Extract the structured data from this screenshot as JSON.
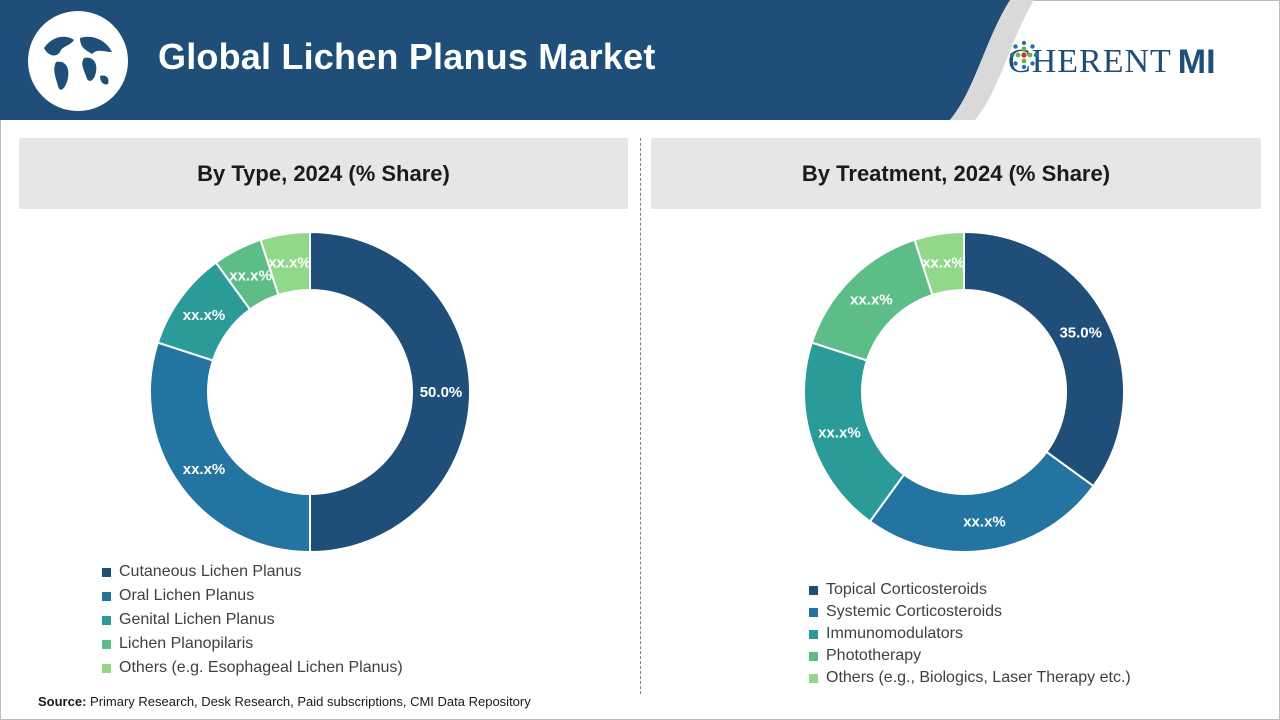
{
  "header": {
    "title": "Global Lichen Planus Market",
    "logo_left": "C",
    "logo_mid": "HERENT",
    "logo_right": "MI"
  },
  "colors": {
    "header_blue": "#1f4e79",
    "series": [
      "#1f4e79",
      "#2474a1",
      "#2b9b9a",
      "#5dbd88",
      "#92d88a"
    ]
  },
  "chart_data": [
    {
      "type": "pie",
      "style": "donut",
      "title": "By Type, 2024 (% Share)",
      "categories": [
        "Cutaneous Lichen Planus",
        "Oral Lichen Planus",
        "Genital Lichen Planus",
        "Lichen Planopilaris",
        "Others (e.g. Esophageal Lichen Planus)"
      ],
      "values": [
        50.0,
        30.0,
        10.0,
        5.0,
        5.0
      ],
      "data_labels": [
        "50.0%",
        "xx.x%",
        "xx.x%",
        "xx.x%",
        "xx.x%"
      ],
      "legend_position": "bottom-left"
    },
    {
      "type": "pie",
      "style": "donut",
      "title": "By Treatment, 2024 (% Share)",
      "categories": [
        "Topical Corticosteroids",
        "Systemic Corticosteroids",
        "Immunomodulators",
        "Phototherapy",
        "Others (e.g., Biologics, Laser Therapy etc.)"
      ],
      "values": [
        35.0,
        25.0,
        20.0,
        15.0,
        5.0
      ],
      "data_labels": [
        "35.0%",
        "xx.x%",
        "xx.x%",
        "xx.x%",
        "xx.x%"
      ],
      "legend_position": "bottom-right"
    }
  ],
  "source": {
    "label": "Source:",
    "text": "Primary Research, Desk Research, Paid subscriptions, CMI Data Repository"
  }
}
